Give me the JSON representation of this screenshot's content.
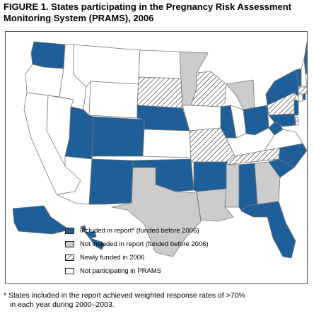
{
  "figure": {
    "title_line1": "FIGURE 1. States participating in the Pregnancy Risk Assessment",
    "title_line2": "Monitoring System (PRAMS), 2006"
  },
  "legend": {
    "items": [
      {
        "key": "included",
        "label": "Included in report* (funded before 2006)",
        "color": "#1f5f99"
      },
      {
        "key": "not_included",
        "label": "Not included in report (funded before 2006)",
        "color": "#cccccc"
      },
      {
        "key": "newly_funded",
        "label": "Newly funded in 2006",
        "pattern": "diagonal-hatch"
      },
      {
        "key": "not_participating",
        "label": "Not participating in PRAMS",
        "color": "#ffffff"
      }
    ]
  },
  "footnote": {
    "line1": "* States included in the report achieved weighted response rates of >70%",
    "line2": "in each year during 2000–2003."
  },
  "map_data": {
    "status_by_state": {
      "WA": "included",
      "OR": "not_participating",
      "CA": "not_participating",
      "NV": "not_participating",
      "ID": "not_participating",
      "MT": "not_participating",
      "WY": "not_participating",
      "UT": "included",
      "CO": "included",
      "AZ": "not_participating",
      "NM": "included",
      "ND": "not_participating",
      "SD": "newly_funded",
      "NE": "included",
      "KS": "not_participating",
      "OK": "included",
      "TX": "not_included",
      "MN": "not_included",
      "IA": "not_participating",
      "MO": "newly_funded",
      "AR": "included",
      "LA": "not_included",
      "WI": "newly_funded",
      "IL": "included",
      "MI": "not_included",
      "IN": "not_participating",
      "OH": "included",
      "KY": "not_participating",
      "TN": "newly_funded",
      "MS": "not_included",
      "AL": "included",
      "GA": "not_included",
      "FL": "included",
      "SC": "included",
      "NC": "included",
      "VA": "not_participating",
      "WV": "included",
      "PA": "newly_funded",
      "NY": "included",
      "ME": "included",
      "VT": "included",
      "NH": "not_participating",
      "MA": "newly_funded",
      "CT": "not_participating",
      "RI": "included",
      "NJ": "included",
      "DE": "newly_funded",
      "MD": "included",
      "AK": "included",
      "HI": "included"
    }
  }
}
